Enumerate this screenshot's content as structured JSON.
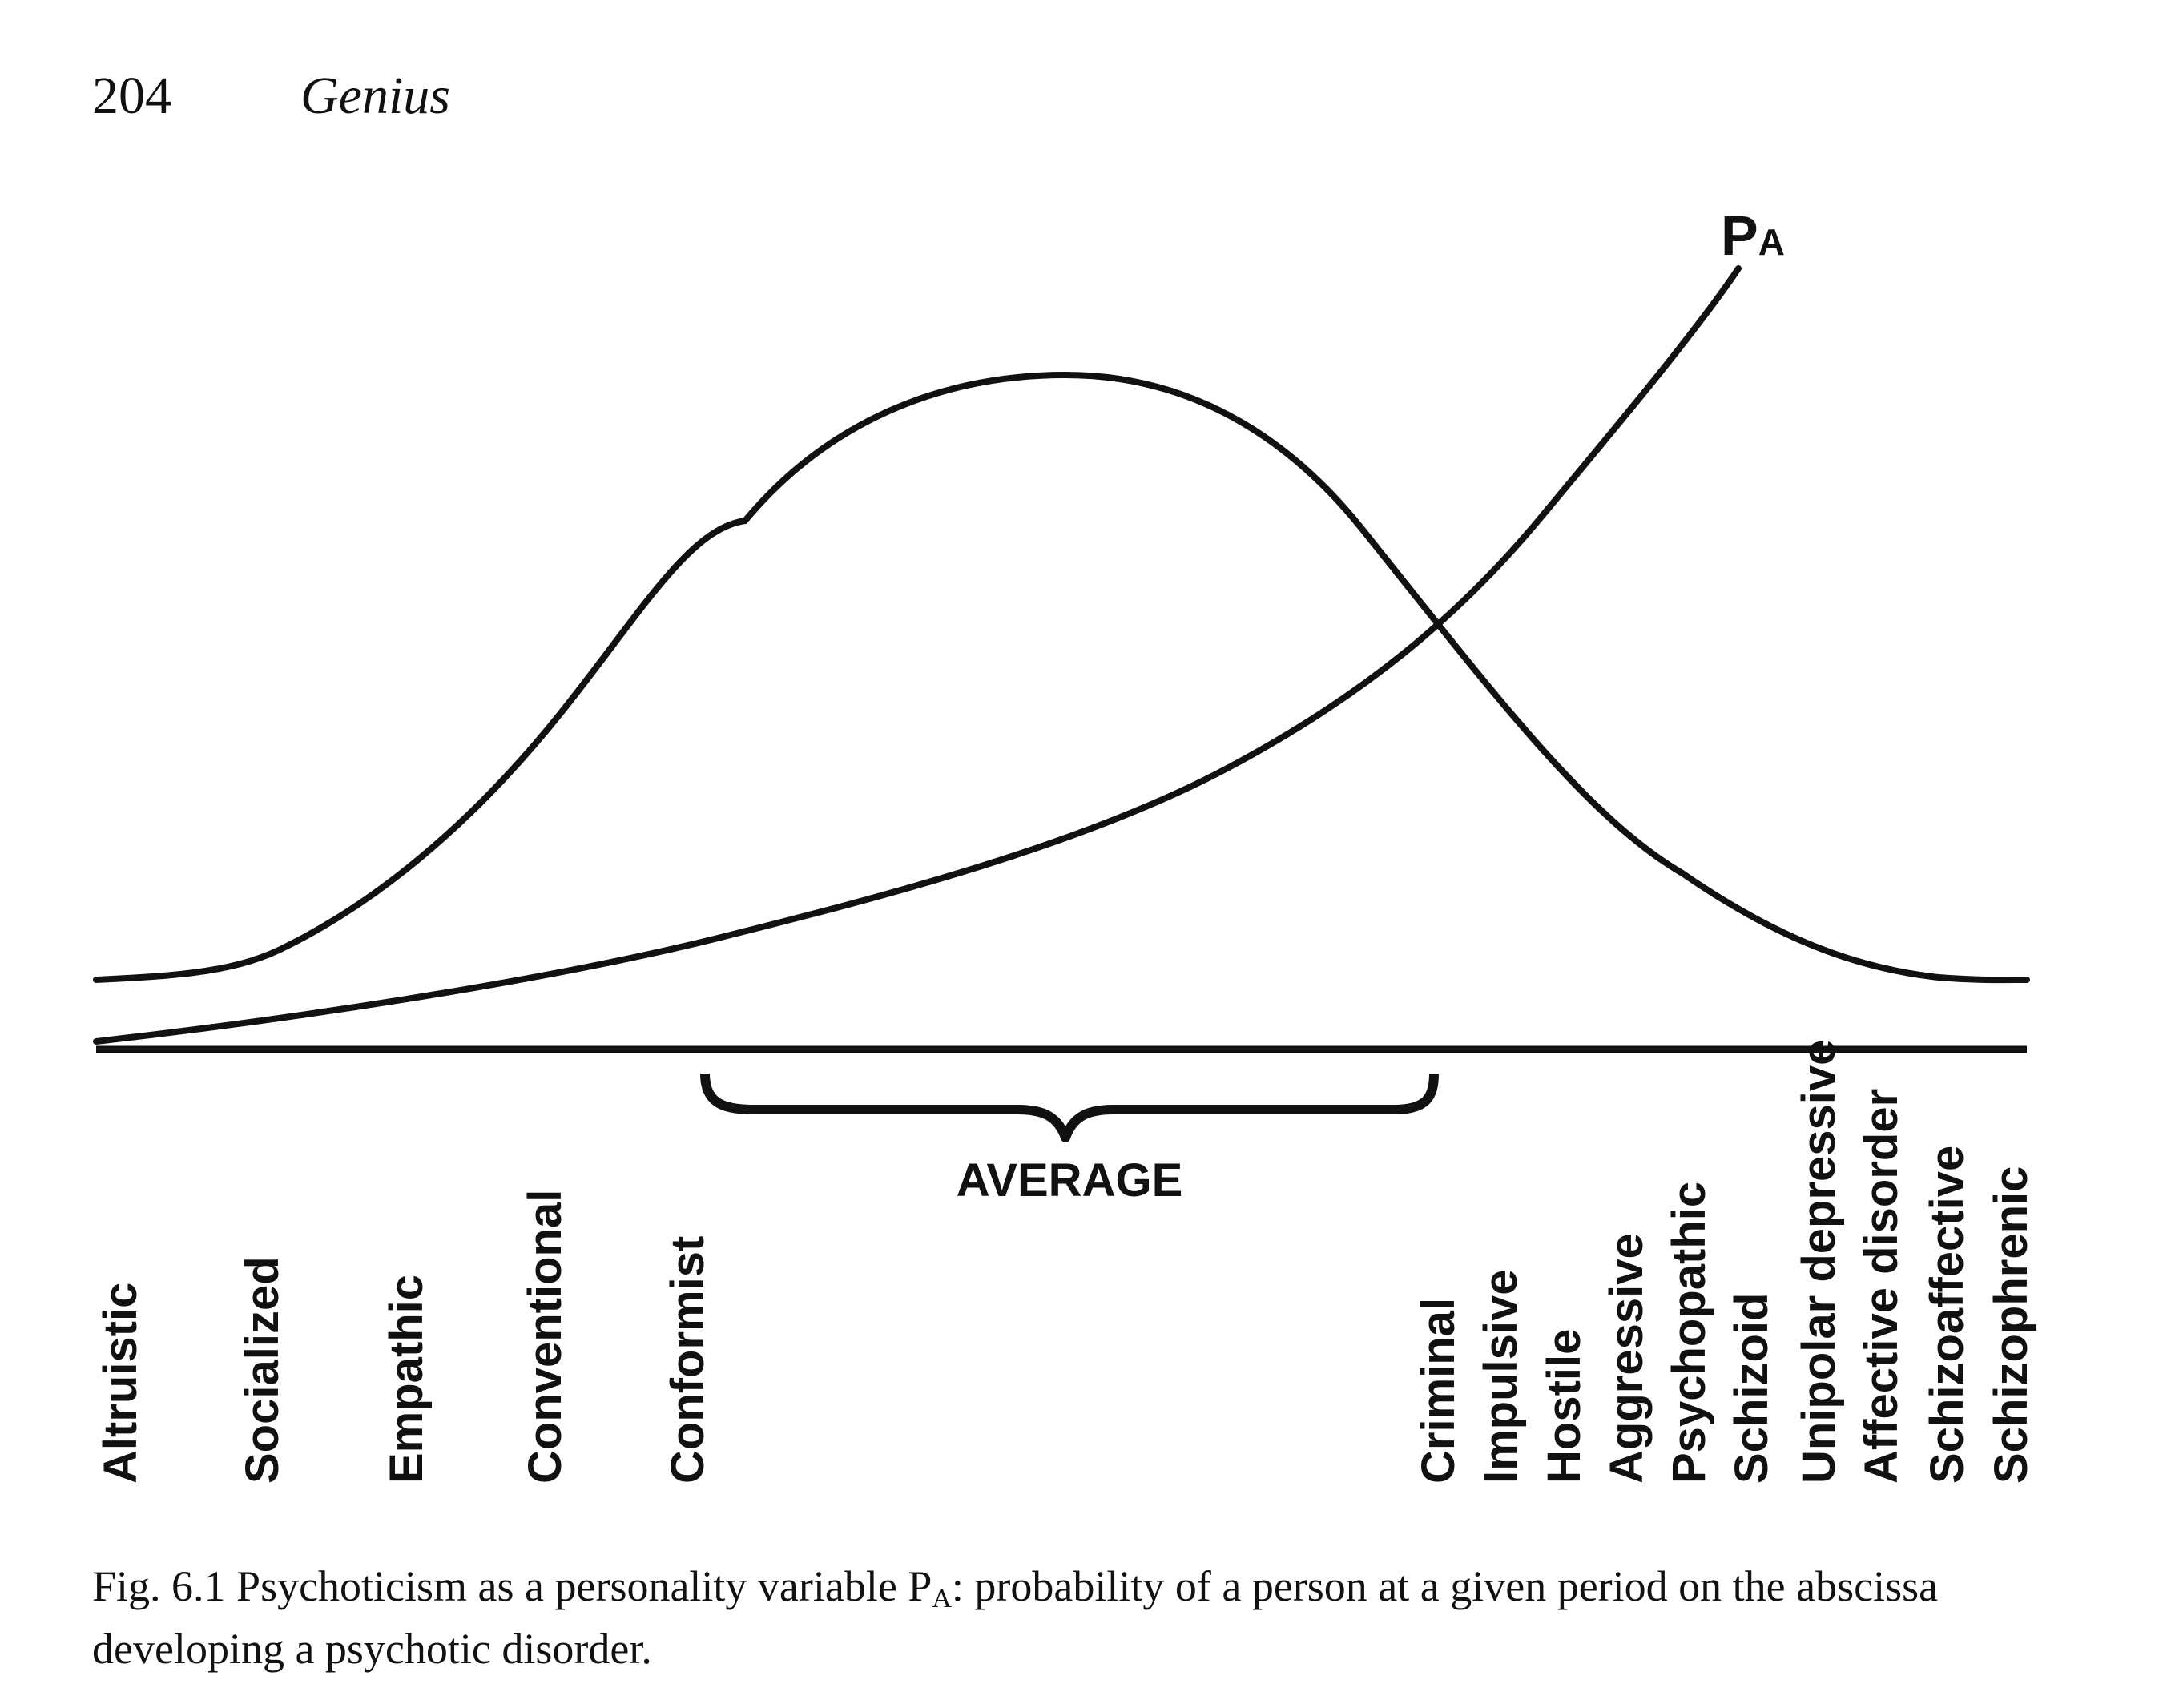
{
  "page": {
    "number": "204",
    "running_title": "Genius"
  },
  "figure": {
    "curve_label_main": "P",
    "curve_label_sub": "A",
    "bracket_label": "AVERAGE",
    "left_labels": [
      "Altruistic",
      "Socialized",
      "Empathic",
      "Conventional",
      "Conformist"
    ],
    "right_labels": [
      "Criminal",
      "Impulsive",
      "Hostile",
      "Aggressive",
      "Psychopathic",
      "Schizoid",
      "Unipolar depressive",
      "Affective disorder",
      "Schizoaffective",
      "Schizophrenic"
    ]
  },
  "caption": {
    "prefix": "Fig. 6.1  Psychoticism as a personality variable P",
    "sub": "A",
    "suffix": ": probability of a person at a given period on the abscissa developing a psychotic disorder."
  }
}
